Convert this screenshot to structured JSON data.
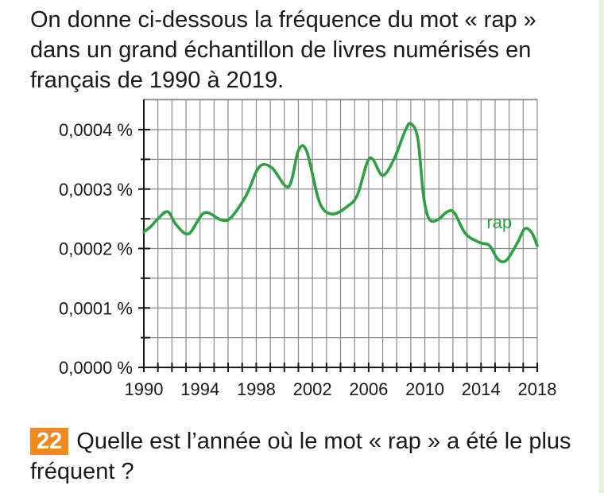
{
  "intro_text": "On donne ci-dessous la fréquence du mot « rap » dans un grand échantillon de livres numérisés en français de 1990 à 2019.",
  "question": {
    "number": "22",
    "text": "Quelle est l’année où le mot « rap » a été le plus fréquent ?"
  },
  "colors": {
    "line": "#2ea043",
    "grid": "#8a8a8a",
    "axis": "#1a1a1a",
    "badge": "#f08a1e"
  },
  "chart_data": {
    "type": "line",
    "xlim": [
      1990,
      2018
    ],
    "ylim": [
      0,
      0.0004
    ],
    "x_ticks": [
      "1990",
      "1994",
      "1998",
      "2002",
      "2006",
      "2010",
      "2014",
      "2018"
    ],
    "y_ticks": [
      "0,0000 %",
      "0,0001 %",
      "0,0002 %",
      "0,0003 %",
      "0,0004 %"
    ],
    "grid": true,
    "series": [
      {
        "name": "rap",
        "x": [
          1990,
          1990.5,
          1991,
          1991.7,
          1992.3,
          1993.2,
          1994.3,
          1995.5,
          1996.2,
          1997.3,
          1998.2,
          1999.1,
          2000.3,
          2001.0,
          2001.6,
          2002.5,
          2003.4,
          2004.5,
          2005.2,
          2005.9,
          2006.3,
          2007.0,
          2007.8,
          2008.6,
          2009.0,
          2009.5,
          2009.9,
          2010.3,
          2010.9,
          2011.6,
          2012.1,
          2012.9,
          2013.9,
          2014.6,
          2015.2,
          2015.8,
          2016.6,
          2017.1,
          2017.6,
          2018.0
        ],
        "y": [
          0.000228,
          0.000237,
          0.00025,
          0.000262,
          0.00024,
          0.000225,
          0.00026,
          0.000248,
          0.000252,
          0.00029,
          0.000337,
          0.000336,
          0.000304,
          0.000365,
          0.000363,
          0.000278,
          0.000258,
          0.000271,
          0.00029,
          0.000345,
          0.00035,
          0.000323,
          0.00035,
          0.000398,
          0.00041,
          0.000385,
          0.00029,
          0.00025,
          0.000248,
          0.000262,
          0.00026,
          0.000225,
          0.00021,
          0.000205,
          0.000182,
          0.00018,
          0.00021,
          0.000233,
          0.000227,
          0.000205
        ]
      }
    ],
    "annotations": [
      {
        "text": "rap",
        "x": 2015.3,
        "y": 0.000234
      }
    ]
  }
}
